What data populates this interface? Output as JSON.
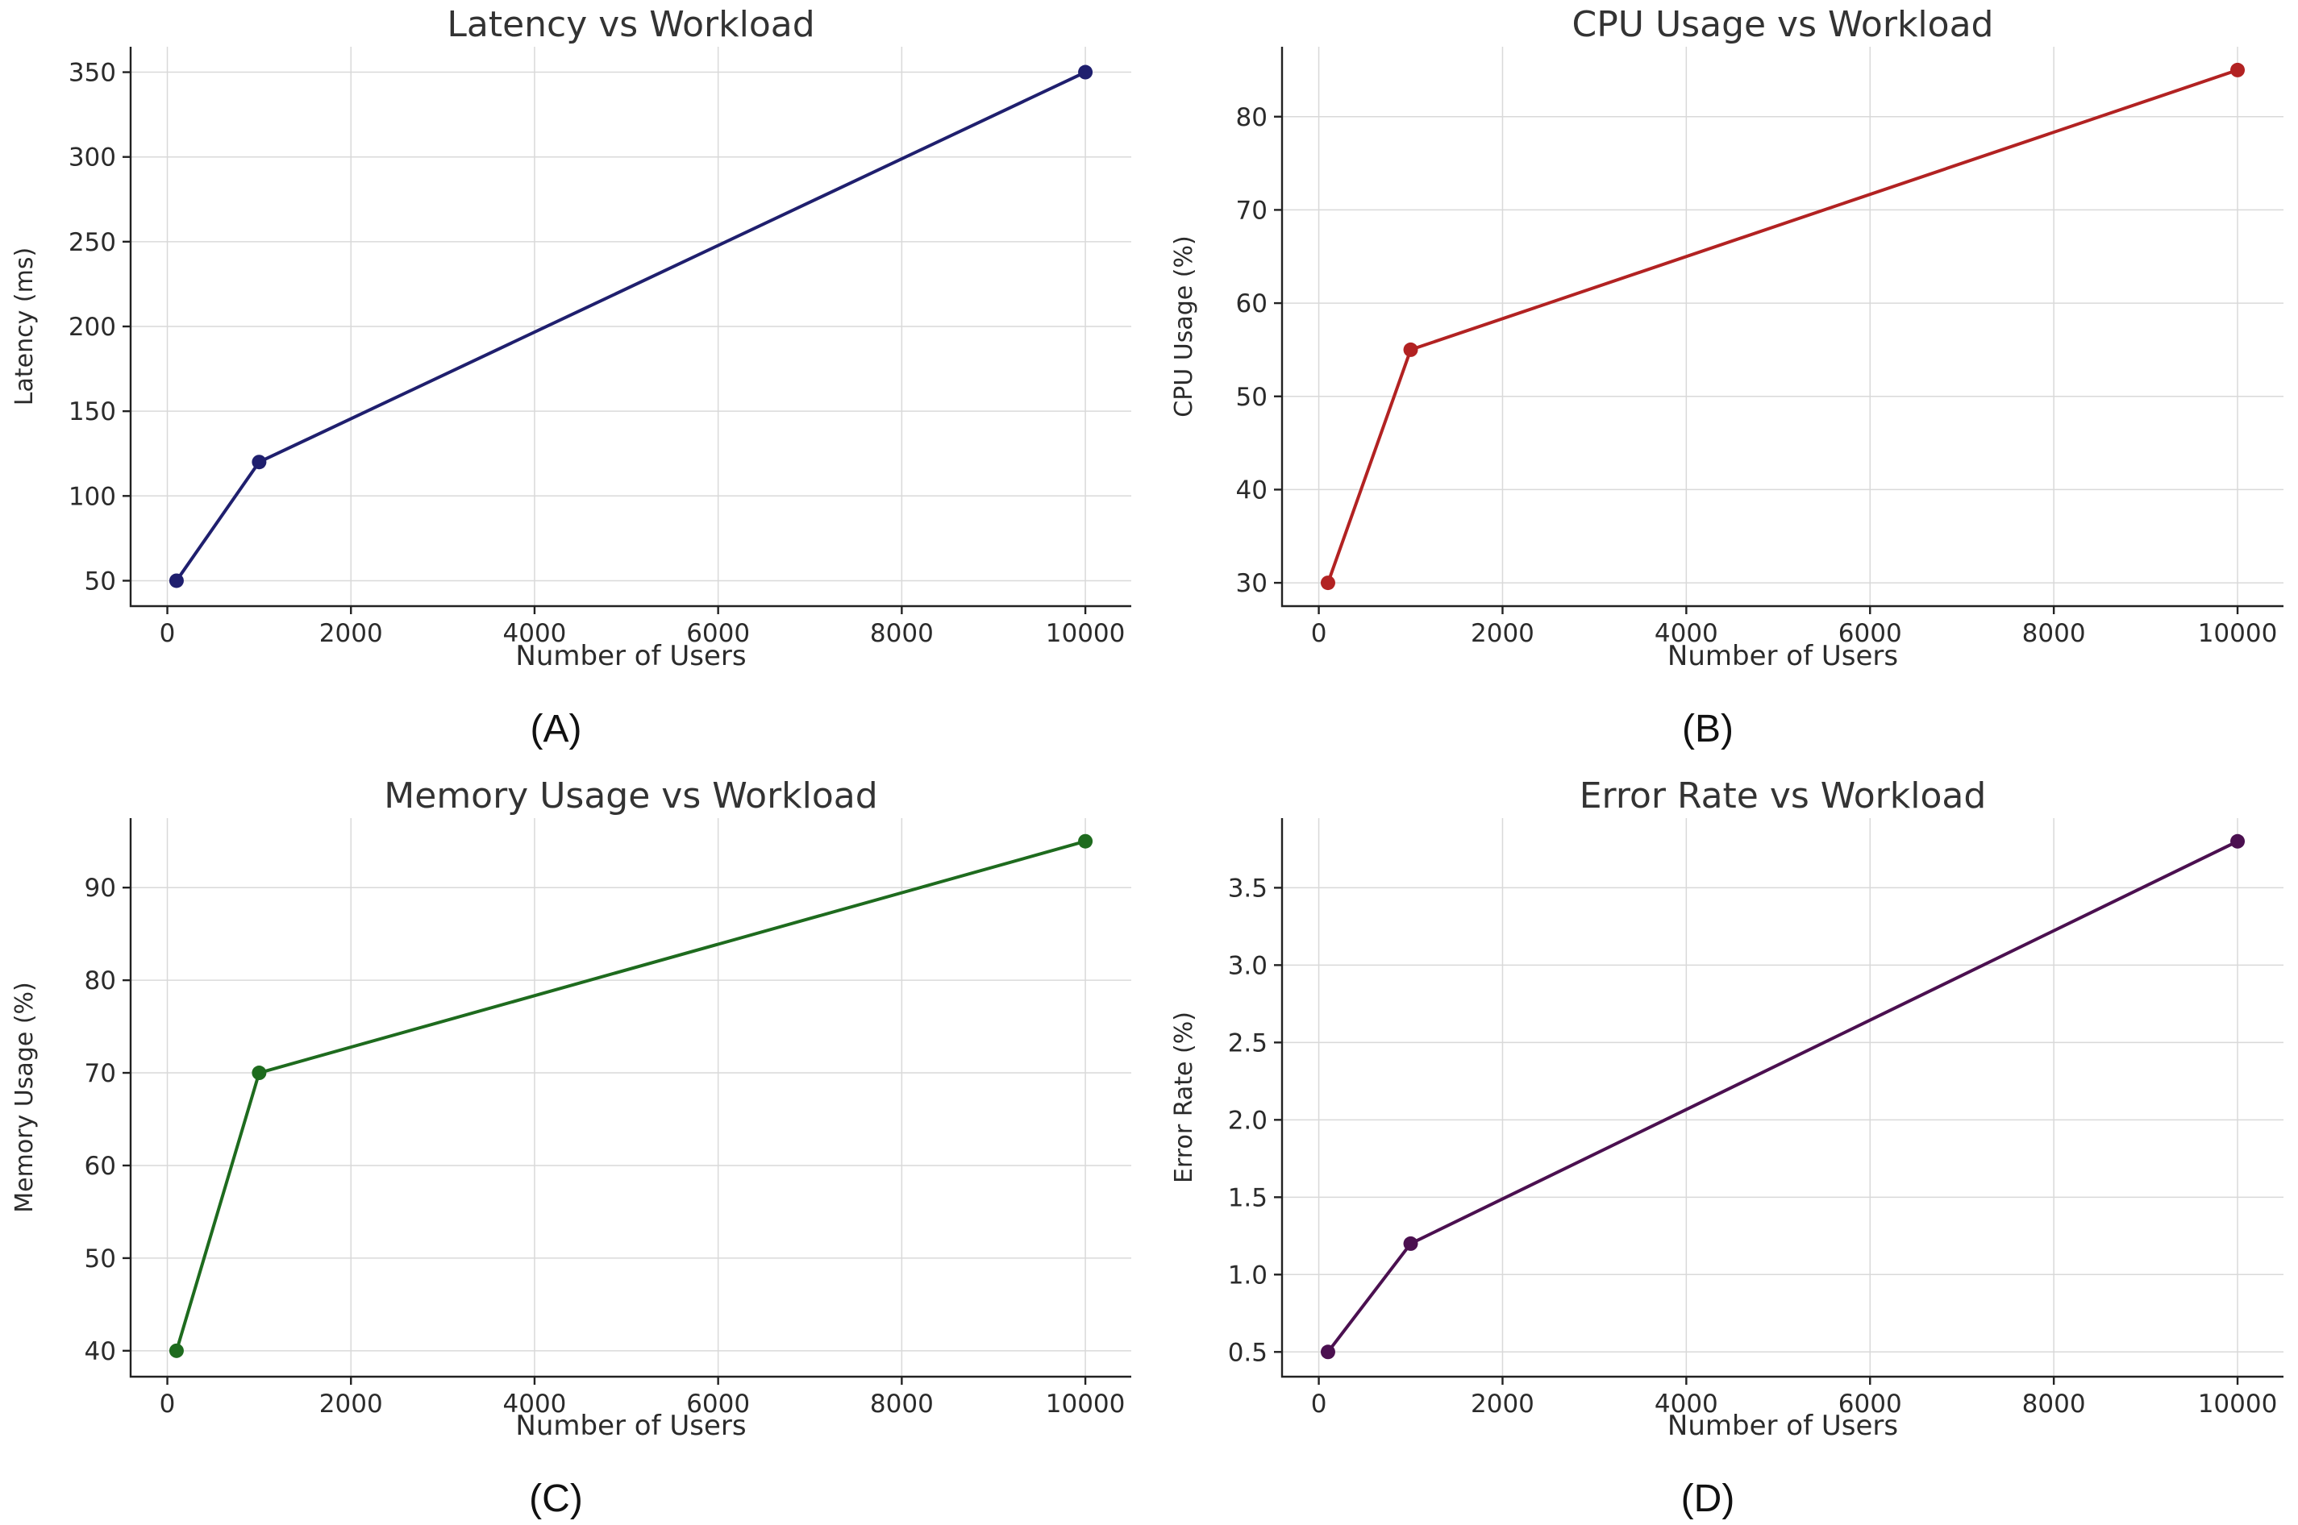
{
  "chart_data": [
    {
      "type": "line",
      "panel_label": "(A)",
      "title": "Latency vs Workload",
      "xlabel": "Number of Users",
      "ylabel": "Latency (ms)",
      "x": [
        100,
        1000,
        10000
      ],
      "series": [
        {
          "name": "Latency",
          "values": [
            50,
            120,
            350
          ],
          "color": "#1f1f6e"
        }
      ],
      "xticks": [
        0,
        2000,
        4000,
        6000,
        8000,
        10000
      ],
      "xtick_labels": [
        "0",
        "2000",
        "4000",
        "6000",
        "8000",
        "10000"
      ],
      "yticks": [
        50,
        100,
        150,
        200,
        250,
        300,
        350
      ],
      "ytick_labels": [
        "50",
        "100",
        "150",
        "200",
        "250",
        "300",
        "350"
      ],
      "xlim": [
        -400,
        10500
      ],
      "ylim": [
        35,
        365
      ],
      "grid": true
    },
    {
      "type": "line",
      "panel_label": "(B)",
      "title": "CPU Usage vs Workload",
      "xlabel": "Number of Users",
      "ylabel": "CPU Usage (%)",
      "x": [
        100,
        1000,
        10000
      ],
      "series": [
        {
          "name": "CPU Usage",
          "values": [
            30,
            55,
            85
          ],
          "color": "#b22222"
        }
      ],
      "xticks": [
        0,
        2000,
        4000,
        6000,
        8000,
        10000
      ],
      "xtick_labels": [
        "0",
        "2000",
        "4000",
        "6000",
        "8000",
        "10000"
      ],
      "yticks": [
        30,
        40,
        50,
        60,
        70,
        80
      ],
      "ytick_labels": [
        "30",
        "40",
        "50",
        "60",
        "70",
        "80"
      ],
      "xlim": [
        -400,
        10500
      ],
      "ylim": [
        27.5,
        87.5
      ],
      "grid": true
    },
    {
      "type": "line",
      "panel_label": "(C)",
      "title": "Memory Usage vs Workload",
      "xlabel": "Number of Users",
      "ylabel": "Memory Usage (%)",
      "x": [
        100,
        1000,
        10000
      ],
      "series": [
        {
          "name": "Memory Usage",
          "values": [
            40,
            70,
            95
          ],
          "color": "#1e6b1e"
        }
      ],
      "xticks": [
        0,
        2000,
        4000,
        6000,
        8000,
        10000
      ],
      "xtick_labels": [
        "0",
        "2000",
        "4000",
        "6000",
        "8000",
        "10000"
      ],
      "yticks": [
        40,
        50,
        60,
        70,
        80,
        90
      ],
      "ytick_labels": [
        "40",
        "50",
        "60",
        "70",
        "80",
        "90"
      ],
      "xlim": [
        -400,
        10500
      ],
      "ylim": [
        37.2,
        97.5
      ],
      "grid": true
    },
    {
      "type": "line",
      "panel_label": "(D)",
      "title": "Error Rate vs Workload",
      "xlabel": "Number of Users",
      "ylabel": "Error Rate (%)",
      "x": [
        100,
        1000,
        10000
      ],
      "series": [
        {
          "name": "Error Rate",
          "values": [
            0.5,
            1.2,
            3.8
          ],
          "color": "#4b1050"
        }
      ],
      "xticks": [
        0,
        2000,
        4000,
        6000,
        8000,
        10000
      ],
      "xtick_labels": [
        "0",
        "2000",
        "4000",
        "6000",
        "8000",
        "10000"
      ],
      "yticks": [
        0.5,
        1.0,
        1.5,
        2.0,
        2.5,
        3.0,
        3.5
      ],
      "ytick_labels": [
        "0.5",
        "1.0",
        "1.5",
        "2.0",
        "2.5",
        "3.0",
        "3.5"
      ],
      "xlim": [
        -400,
        10500
      ],
      "ylim": [
        0.34,
        3.95
      ],
      "grid": true
    }
  ]
}
